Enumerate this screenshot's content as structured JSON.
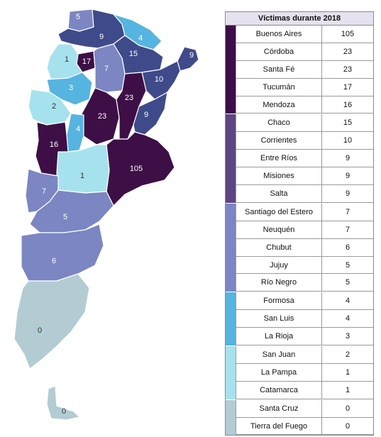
{
  "legend": {
    "title": "Víctimas durante 2018",
    "groups": [
      {
        "color": "#3d0f46",
        "rows": [
          {
            "province": "Buenos Aires",
            "value": "105"
          },
          {
            "province": "Córdoba",
            "value": "23"
          },
          {
            "province": "Santa Fé",
            "value": "23"
          },
          {
            "province": "Tucumán",
            "value": "17"
          },
          {
            "province": "Mendoza",
            "value": "16"
          }
        ]
      },
      {
        "color": "#5e4583",
        "rows": [
          {
            "province": "Chaco",
            "value": "15"
          },
          {
            "province": "Corrientes",
            "value": "10"
          },
          {
            "province": "Entre Ríos",
            "value": "9"
          },
          {
            "province": "Misiones",
            "value": "9"
          },
          {
            "province": "Salta",
            "value": "9"
          }
        ]
      },
      {
        "color": "#7b86c2",
        "rows": [
          {
            "province": "Santiago del Estero",
            "value": "7"
          },
          {
            "province": "Neuquén",
            "value": "7"
          },
          {
            "province": "Chubut",
            "value": "6"
          },
          {
            "province": "Jujuy",
            "value": "5"
          },
          {
            "province": "Río Negro",
            "value": "5"
          }
        ]
      },
      {
        "color": "#56b4e0",
        "rows": [
          {
            "province": "Formosa",
            "value": "4"
          },
          {
            "province": "San Luis",
            "value": "4"
          },
          {
            "province": "La Rioja",
            "value": "3"
          }
        ]
      },
      {
        "color": "#a6e2ed",
        "rows": [
          {
            "province": "San Juan",
            "value": "2"
          },
          {
            "province": "La Pampa",
            "value": "1"
          },
          {
            "province": "Catamarca",
            "value": "1"
          }
        ]
      },
      {
        "color": "#b3ccd3",
        "rows": [
          {
            "province": "Santa Cruz",
            "value": "0"
          },
          {
            "province": "Tierra del Fuego",
            "value": "0"
          }
        ]
      }
    ]
  },
  "map": {
    "provinces": [
      {
        "key": "jujuy",
        "label": "5",
        "color": "#7b86c2"
      },
      {
        "key": "salta",
        "label": "9",
        "color": "#3f4a8a"
      },
      {
        "key": "formosa",
        "label": "4",
        "color": "#56b4e0"
      },
      {
        "key": "misiones",
        "label": "9",
        "color": "#3f4a8a"
      },
      {
        "key": "chaco",
        "label": "15",
        "color": "#3f4a8a"
      },
      {
        "key": "tucuman",
        "label": "17",
        "color": "#3d0f46"
      },
      {
        "key": "catamarca",
        "label": "1",
        "color": "#a6e2ed"
      },
      {
        "key": "santiago",
        "label": "7",
        "color": "#7b86c2"
      },
      {
        "key": "corrientes",
        "label": "10",
        "color": "#3f4a8a"
      },
      {
        "key": "larioja",
        "label": "3",
        "color": "#56b4e0"
      },
      {
        "key": "sanjuan",
        "label": "2",
        "color": "#a6e2ed"
      },
      {
        "key": "cordoba",
        "label": "23",
        "color": "#3d0f46"
      },
      {
        "key": "santafe",
        "label": "23",
        "color": "#3d0f46"
      },
      {
        "key": "entrerios",
        "label": "9",
        "color": "#3f4a8a"
      },
      {
        "key": "sanluis",
        "label": "4",
        "color": "#56b4e0"
      },
      {
        "key": "mendoza",
        "label": "16",
        "color": "#3d0f46"
      },
      {
        "key": "buenosaires",
        "label": "105",
        "color": "#3d0f46"
      },
      {
        "key": "lapampa",
        "label": "1",
        "color": "#a6e2ed"
      },
      {
        "key": "neuquen",
        "label": "7",
        "color": "#7b86c2"
      },
      {
        "key": "rionegro",
        "label": "5",
        "color": "#7b86c2"
      },
      {
        "key": "chubut",
        "label": "6",
        "color": "#7b86c2"
      },
      {
        "key": "santacruz",
        "label": "0",
        "color": "#b3ccd3"
      },
      {
        "key": "tierradelfuego",
        "label": "0",
        "color": "#b3ccd3"
      }
    ]
  }
}
